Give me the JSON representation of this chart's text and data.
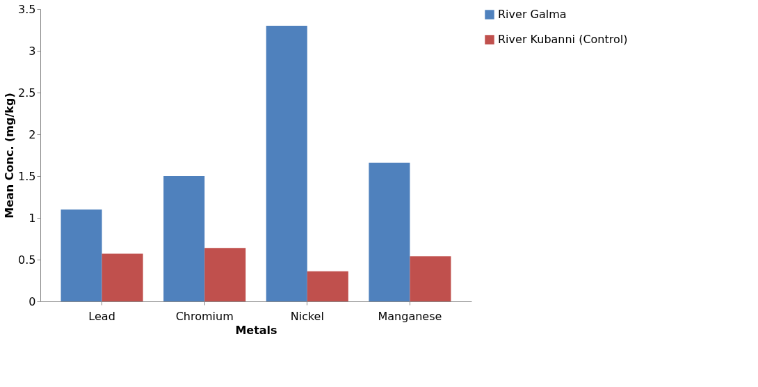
{
  "chart_data": {
    "type": "bar",
    "xlabel": "Metals",
    "ylabel": "Mean Conc. (mg/kg)",
    "categories": [
      "Lead",
      "Chromium",
      "Nickel",
      "Manganese"
    ],
    "series": [
      {
        "name": "River Galma",
        "color": "#4f81bd",
        "values": [
          1.1,
          1.5,
          3.3,
          1.66
        ]
      },
      {
        "name": "River Kubanni (Control)",
        "color": "#c0504d",
        "values": [
          0.57,
          0.64,
          0.36,
          0.54
        ]
      }
    ],
    "ylim": [
      0,
      3.5
    ],
    "yticks": [
      0,
      0.5,
      1,
      1.5,
      2,
      2.5,
      3,
      3.5
    ],
    "grid": false,
    "legend": "right"
  }
}
